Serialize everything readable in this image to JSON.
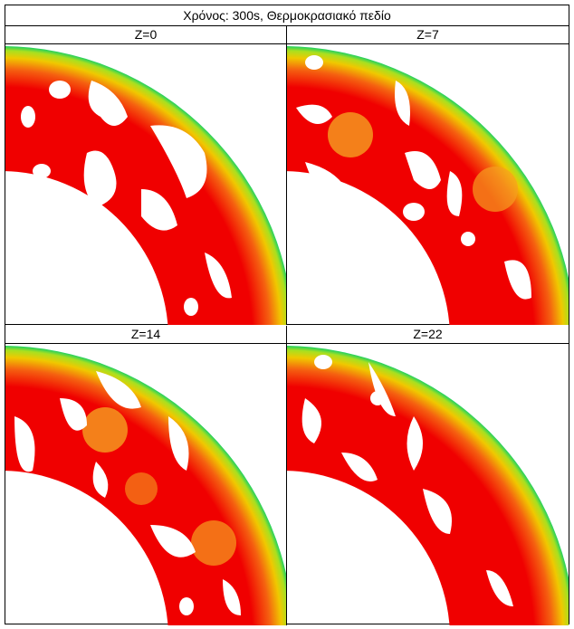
{
  "table": {
    "title": "Χρόνος: 300s, Θερμοκρασιακό πεδίο",
    "panels": [
      "Z=0",
      "Z=7",
      "Z=14",
      "Z=22"
    ]
  }
}
